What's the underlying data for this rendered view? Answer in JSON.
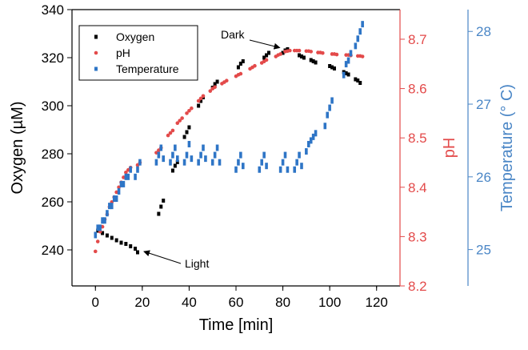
{
  "chart_data": {
    "type": "scatter",
    "title": "",
    "xlabel": "Time [min]",
    "ylabel_left": "Oxygen (µM)",
    "ylabel_right1": "pH",
    "ylabel_right2": "Temperature (° C)",
    "xlim": [
      -10,
      130
    ],
    "xticks": [
      0,
      20,
      40,
      60,
      80,
      100,
      120
    ],
    "ylim_left": [
      225,
      340
    ],
    "yticks_left": [
      240,
      260,
      280,
      300,
      320,
      340
    ],
    "ylim_right1": [
      8.2,
      8.76
    ],
    "yticks_right1": [
      8.2,
      8.3,
      8.4,
      8.5,
      8.6,
      8.7
    ],
    "ylim_right2": [
      24.5,
      28.3
    ],
    "yticks_right2": [
      25,
      26,
      27,
      28
    ],
    "grid": false,
    "legend_position": "top-left",
    "colors": {
      "oxygen": "#000000",
      "ph": "#e34a4a",
      "temperature": "#2e75c6",
      "axis_right2": "#4a86c6"
    },
    "series": [
      {
        "name": "Oxygen",
        "axis": "left",
        "color": "#000000",
        "x": [
          1,
          3,
          5,
          7,
          9,
          11,
          13,
          15,
          17,
          18,
          27,
          28,
          29,
          33,
          34,
          35,
          38,
          39,
          40,
          44,
          45,
          46,
          50,
          51,
          52,
          61,
          62,
          63,
          72,
          73,
          74,
          80,
          81,
          82,
          87,
          88,
          89,
          92,
          93,
          94,
          100,
          101,
          102,
          106,
          107,
          108,
          111,
          112,
          113
        ],
        "y": [
          248,
          247,
          246,
          245,
          244,
          243,
          242.5,
          241.5,
          240.5,
          239,
          255,
          258,
          260.5,
          273,
          275,
          276.5,
          287,
          289,
          291,
          300,
          302,
          303.5,
          307.5,
          309,
          310,
          316,
          317.5,
          318.5,
          320,
          321,
          322,
          322,
          323,
          323.5,
          321,
          320.5,
          320,
          319,
          318.5,
          318,
          316.5,
          316,
          315.5,
          314,
          313.5,
          313,
          311,
          310.5,
          309.5
        ]
      },
      {
        "name": "pH",
        "axis": "right1",
        "color": "#e34a4a",
        "x": [
          0,
          1,
          2,
          3,
          4,
          5,
          6,
          7,
          8,
          9,
          10,
          11,
          12,
          13,
          14,
          15,
          18,
          19,
          26,
          27,
          28,
          31,
          32,
          33,
          35,
          36,
          37,
          39,
          40,
          41,
          44,
          45,
          46,
          49,
          50,
          51,
          54,
          55,
          56,
          60,
          61,
          62,
          66,
          67,
          68,
          71,
          72,
          73,
          77,
          78,
          79,
          81,
          82,
          83,
          85,
          86,
          87,
          90,
          91,
          92,
          95,
          96,
          97,
          101,
          102,
          103,
          107,
          108,
          109,
          112,
          113,
          114
        ],
        "y": [
          8.27,
          8.29,
          8.31,
          8.32,
          8.335,
          8.345,
          8.36,
          8.37,
          8.38,
          8.39,
          8.4,
          8.41,
          8.42,
          8.43,
          8.435,
          8.44,
          8.445,
          8.45,
          8.47,
          8.475,
          8.48,
          8.505,
          8.51,
          8.515,
          8.53,
          8.535,
          8.54,
          8.55,
          8.555,
          8.56,
          8.575,
          8.58,
          8.585,
          8.595,
          8.6,
          8.603,
          8.61,
          8.613,
          8.616,
          8.625,
          8.628,
          8.63,
          8.64,
          8.643,
          8.646,
          8.652,
          8.655,
          8.658,
          8.665,
          8.668,
          8.67,
          8.675,
          8.676,
          8.677,
          8.677,
          8.677,
          8.677,
          8.676,
          8.676,
          8.675,
          8.673,
          8.673,
          8.672,
          8.67,
          8.67,
          8.669,
          8.668,
          8.668,
          8.667,
          8.666,
          8.666,
          8.665
        ]
      },
      {
        "name": "Temperature",
        "axis": "right2",
        "color": "#2e75c6",
        "x": [
          0,
          1,
          2,
          3,
          4,
          5,
          6,
          7,
          8,
          9,
          10,
          11,
          12,
          13,
          14,
          15,
          17,
          18,
          19,
          26,
          27,
          28,
          29,
          32,
          33,
          34,
          35,
          38,
          39,
          40,
          41,
          44,
          45,
          46,
          47,
          50,
          51,
          52,
          53,
          60,
          61,
          62,
          63,
          70,
          71,
          72,
          73,
          79,
          80,
          81,
          82,
          85,
          86,
          87,
          88,
          90,
          91,
          92,
          93,
          94,
          98,
          99,
          100,
          101,
          106,
          107,
          108,
          109,
          111,
          112,
          113,
          114
        ],
        "y": [
          25.2,
          25.3,
          25.3,
          25.4,
          25.4,
          25.5,
          25.6,
          25.6,
          25.7,
          25.7,
          25.8,
          25.9,
          25.9,
          26.0,
          26.0,
          26.1,
          26.0,
          26.1,
          26.2,
          26.2,
          26.3,
          26.4,
          26.25,
          26.2,
          26.3,
          26.4,
          26.25,
          26.2,
          26.3,
          26.45,
          26.25,
          26.2,
          26.3,
          26.4,
          26.25,
          26.2,
          26.3,
          26.4,
          26.2,
          26.1,
          26.2,
          26.3,
          26.15,
          26.1,
          26.2,
          26.3,
          26.15,
          26.1,
          26.2,
          26.3,
          26.1,
          26.1,
          26.2,
          26.3,
          26.15,
          26.35,
          26.45,
          26.5,
          26.55,
          26.6,
          26.7,
          26.85,
          26.95,
          27.05,
          27.4,
          27.55,
          27.6,
          27.7,
          27.8,
          27.9,
          28.0,
          28.1
        ]
      }
    ],
    "legend": [
      "Oxygen",
      "pH",
      "Temperature"
    ],
    "annotations": [
      {
        "text": "Dark",
        "x": 80,
        "y_axis": "left",
        "y": 323.5
      },
      {
        "text": "Light",
        "x": 18,
        "y_axis": "left",
        "y": 239
      }
    ]
  }
}
